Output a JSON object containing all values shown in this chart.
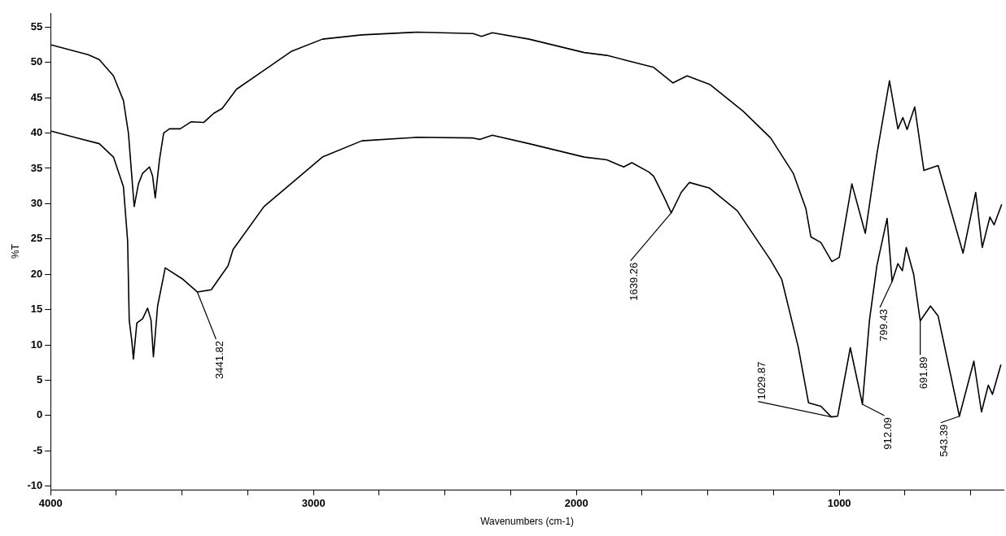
{
  "chart_data": {
    "type": "line",
    "xlabel": "Wavenumbers (cm-1)",
    "ylabel": "%T",
    "xlim": [
      4000,
      375
    ],
    "ylim": [
      -10.5,
      57
    ],
    "xticks": [
      4000,
      {
        "value": 3750,
        "label": null
      },
      {
        "value": 3500,
        "label": null
      },
      {
        "value": 3250,
        "label": null
      },
      3000,
      {
        "value": 2750,
        "label": null
      },
      {
        "value": 2500,
        "label": null
      },
      {
        "value": 2250,
        "label": null
      },
      2000,
      {
        "value": 1750,
        "label": null
      },
      {
        "value": 1500,
        "label": null
      },
      {
        "value": 1250,
        "label": null
      },
      1000,
      {
        "value": 750,
        "label": null
      },
      {
        "value": 500,
        "label": null
      }
    ],
    "yticks": [
      -10,
      -5,
      0,
      5,
      10,
      15,
      20,
      25,
      30,
      35,
      40,
      45,
      50,
      55
    ],
    "grid": false,
    "legend": false,
    "marker": "none",
    "line_style": "solid",
    "series": [
      {
        "color": "#000000",
        "x": [
          4000,
          3857,
          3815,
          3761,
          3723,
          3704,
          3688,
          3682,
          3666,
          3650,
          3624,
          3612,
          3602,
          3586,
          3570,
          3548,
          3507,
          3465,
          3418,
          3379,
          3347,
          3293,
          3188,
          3083,
          2966,
          2816,
          2605,
          2393,
          2361,
          2320,
          2180,
          1970,
          1884,
          1810,
          1706,
          1633,
          1579,
          1493,
          1366,
          1261,
          1175,
          1127,
          1108,
          1070,
          1028,
          1000,
          952,
          901,
          857,
          809,
          777,
          758,
          742,
          713,
          678,
          624,
          529,
          481,
          456,
          427,
          411,
          382
        ],
        "values": [
          52.5,
          51.1,
          50.4,
          48.1,
          44.6,
          40,
          32.4,
          29.6,
          32.8,
          34.3,
          35.2,
          33.9,
          30.8,
          36.2,
          40,
          40.6,
          40.6,
          41.6,
          41.5,
          42.8,
          43.5,
          46.2,
          48.9,
          51.6,
          53.3,
          53.9,
          54.3,
          54.1,
          53.7,
          54.2,
          53.3,
          51.4,
          51,
          50.3,
          49.3,
          47.1,
          48.1,
          46.9,
          43.1,
          39.3,
          34.3,
          29.3,
          25.3,
          24.5,
          21.8,
          22.4,
          32.8,
          25.8,
          37,
          47.4,
          40.6,
          42.2,
          40.5,
          43.7,
          34.7,
          35.4,
          23,
          31.6,
          23.8,
          28.1,
          27,
          29.9
        ]
      },
      {
        "color": "#000000",
        "x": [
          4000,
          3898,
          3815,
          3761,
          3723,
          3707,
          3701,
          3691,
          3685,
          3672,
          3650,
          3631,
          3618,
          3609,
          3593,
          3564,
          3497,
          3442,
          3389,
          3325,
          3306,
          3188,
          2966,
          2816,
          2605,
          2393,
          2368,
          2320,
          2180,
          1970,
          1884,
          1820,
          1789,
          1725,
          1706,
          1665,
          1639,
          1601,
          1570,
          1493,
          1388,
          1261,
          1219,
          1156,
          1117,
          1070,
          1030,
          1006,
          958,
          912,
          885,
          857,
          818,
          799,
          777,
          760,
          745,
          717,
          692,
          653,
          624,
          543,
          488,
          459,
          433,
          417,
          385
        ],
        "values": [
          40.3,
          39.3,
          38.5,
          36.6,
          32.4,
          24.7,
          13.5,
          10.5,
          8,
          13.1,
          13.7,
          15.2,
          13.5,
          8.3,
          15.5,
          20.9,
          19.3,
          17.5,
          17.8,
          21.2,
          23.5,
          29.6,
          36.6,
          38.9,
          39.4,
          39.3,
          39.1,
          39.7,
          38.5,
          36.6,
          36.2,
          35.2,
          35.8,
          34.5,
          33.9,
          30.8,
          28.7,
          31.6,
          33,
          32.2,
          29,
          22,
          19.3,
          9.7,
          1.8,
          1.3,
          -0.2,
          -0.1,
          9.6,
          1.6,
          13.5,
          21.2,
          27.9,
          19,
          21.5,
          20.5,
          23.8,
          20,
          13.4,
          15.5,
          14.1,
          -0.1,
          7.7,
          0.5,
          4.3,
          3,
          7.2
        ]
      }
    ],
    "annotations": [
      {
        "text": "3441.82",
        "x": 3442,
        "y": 17.5
      },
      {
        "text": "1639.26",
        "x": 1639,
        "y": 28.7
      },
      {
        "text": "1029.87",
        "x": 1030,
        "y": -0.2
      },
      {
        "text": "912.09",
        "x": 912,
        "y": 1.6
      },
      {
        "text": "799.43",
        "x": 799,
        "y": 19
      },
      {
        "text": "691.89",
        "x": 692,
        "y": 13.4
      },
      {
        "text": "543.39",
        "x": 543,
        "y": -0.1
      }
    ]
  }
}
